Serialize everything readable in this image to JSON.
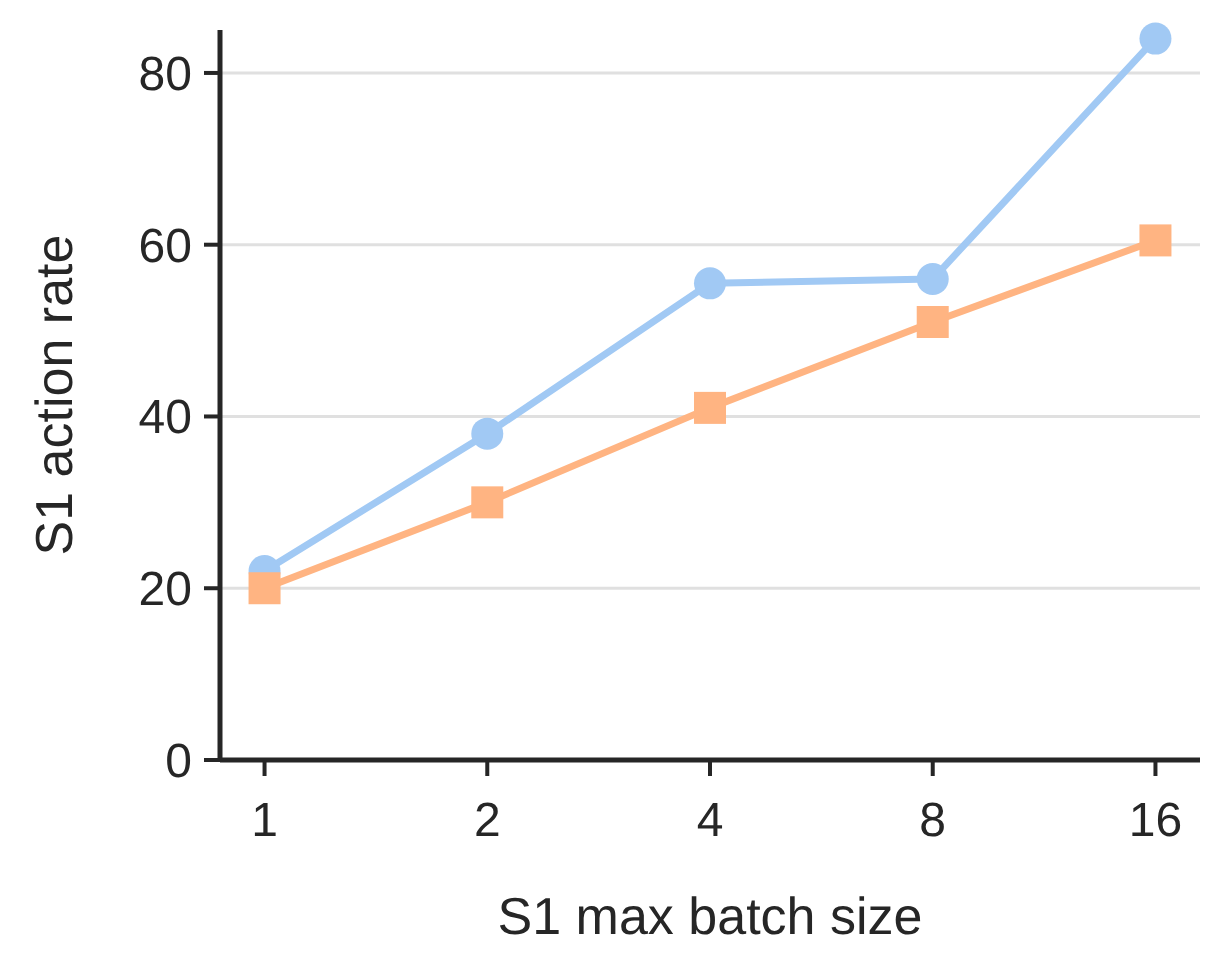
{
  "chart_data": {
    "type": "line",
    "xlabel": "S1 max batch size",
    "ylabel": "S1 action rate",
    "categories": [
      "1",
      "2",
      "4",
      "8",
      "16"
    ],
    "series": [
      {
        "color": "#a1c9f4",
        "marker": "circle",
        "values": [
          22,
          38,
          55.5,
          56,
          84
        ]
      },
      {
        "color": "#ffb482",
        "marker": "square",
        "values": [
          20,
          30,
          41,
          51,
          60.5
        ]
      }
    ],
    "ylim": [
      0,
      85
    ],
    "yticks": [
      0,
      20,
      40,
      60,
      80
    ],
    "grid": "y"
  }
}
